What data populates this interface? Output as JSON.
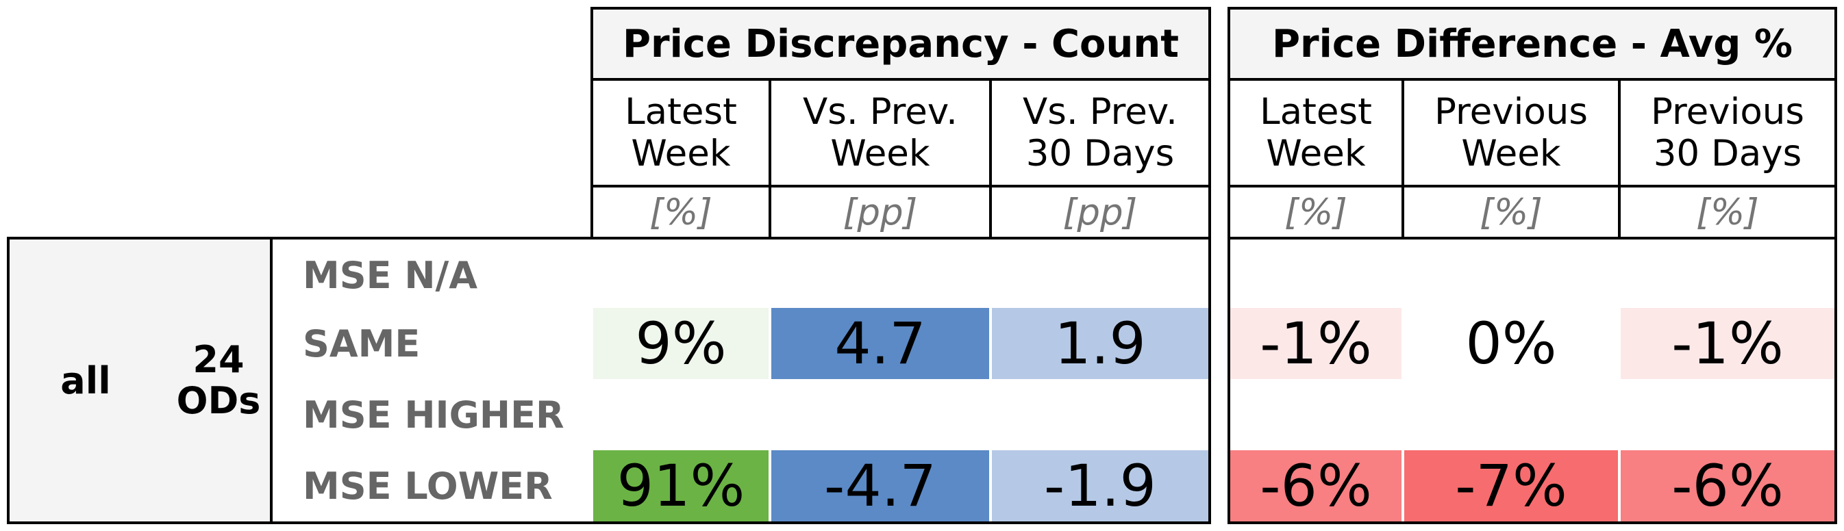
{
  "chart_data": {
    "type": "table",
    "groups": [
      {
        "title": "Price Discrepancy - Count",
        "columns": [
          {
            "label": "Latest\nWeek",
            "unit": "[%]"
          },
          {
            "label": "Vs. Prev.\nWeek",
            "unit": "[pp]"
          },
          {
            "label": "Vs. Prev.\n30 Days",
            "unit": "[pp]"
          }
        ]
      },
      {
        "title": "Price Difference - Avg %",
        "columns": [
          {
            "label": "Latest\nWeek",
            "unit": "[%]"
          },
          {
            "label": "Previous\nWeek",
            "unit": "[%]"
          },
          {
            "label": "Previous\n30 Days",
            "unit": "[%]"
          }
        ]
      }
    ],
    "segment": {
      "name": "all",
      "count_label": "24\nODs"
    },
    "rows": [
      {
        "label": "MSE N/A",
        "cells": [
          {
            "text": "",
            "color": ""
          },
          {
            "text": "",
            "color": ""
          },
          {
            "text": "",
            "color": ""
          },
          {
            "text": "",
            "color": ""
          },
          {
            "text": "",
            "color": ""
          },
          {
            "text": "",
            "color": ""
          }
        ]
      },
      {
        "label": "SAME",
        "cells": [
          {
            "text": "9%",
            "color": "#eff6ec"
          },
          {
            "text": "4.7",
            "color": "#5b8ac6"
          },
          {
            "text": "1.9",
            "color": "#b5c9e6"
          },
          {
            "text": "-1%",
            "color": "#fde8e8"
          },
          {
            "text": "0%",
            "color": ""
          },
          {
            "text": "-1%",
            "color": "#fde8e8"
          }
        ]
      },
      {
        "label": "MSE HIGHER",
        "cells": [
          {
            "text": "",
            "color": ""
          },
          {
            "text": "",
            "color": ""
          },
          {
            "text": "",
            "color": ""
          },
          {
            "text": "",
            "color": ""
          },
          {
            "text": "",
            "color": ""
          },
          {
            "text": "",
            "color": ""
          }
        ]
      },
      {
        "label": "MSE LOWER",
        "cells": [
          {
            "text": "91%",
            "color": "#6bb345"
          },
          {
            "text": "-4.7",
            "color": "#5b8ac6"
          },
          {
            "text": "-1.9",
            "color": "#b5c9e6"
          },
          {
            "text": "-6%",
            "color": "#f87f82"
          },
          {
            "text": "-7%",
            "color": "#f76c6e"
          },
          {
            "text": "-6%",
            "color": "#f87f82"
          }
        ]
      }
    ]
  }
}
